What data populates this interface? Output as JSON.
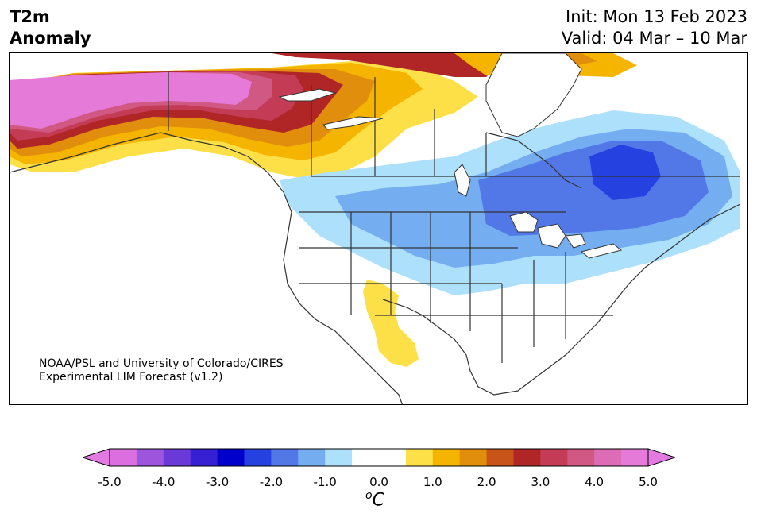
{
  "header": {
    "variable": "T2m",
    "subtitle": "Anomaly",
    "init": "Init: Mon 13 Feb 2023",
    "valid": "Valid: 04 Mar – 10 Mar"
  },
  "credit": {
    "line1": "NOAA/PSL and University of Colorado/CIRES",
    "line2": "Experimental LIM Forecast (v1.2)"
  },
  "colorbar": {
    "ticks": [
      "-5.0",
      "-4.0",
      "-3.0",
      "-2.0",
      "-1.0",
      "0.0",
      "1.0",
      "2.0",
      "3.0",
      "4.0",
      "5.0"
    ],
    "unit_base": "C",
    "unit_sup": "o",
    "low_extend_color": "#e27ae2",
    "high_extend_color": "#e27ae2",
    "colors": [
      "#dc6fe0",
      "#9c55dd",
      "#6a3ad9",
      "#3520d3",
      "#0000cc",
      "#2541df",
      "#5278e8",
      "#74aef0",
      "#ade0fb",
      "#ffffff",
      "#ffffff",
      "#fde047",
      "#f4b400",
      "#e08e0b",
      "#c8541a",
      "#b02626",
      "#c33b55",
      "#d05882",
      "#dc6cb5",
      "#e57ad8"
    ]
  }
}
